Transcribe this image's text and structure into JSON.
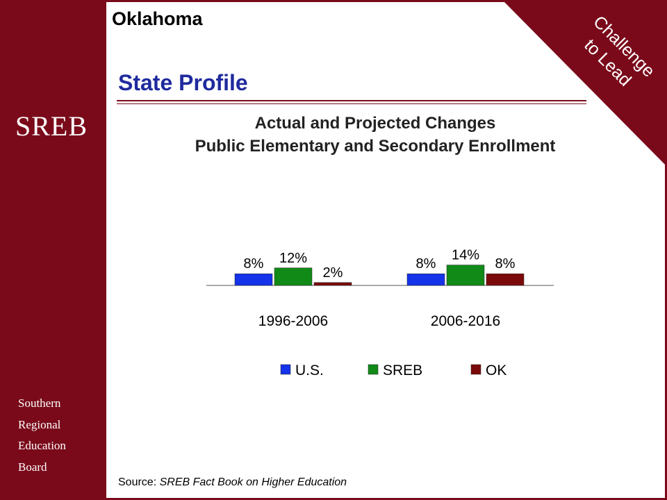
{
  "header": {
    "state": "Oklahoma",
    "page_title": "State Profile"
  },
  "corner": {
    "line1": "Challenge",
    "line2": "to Lead"
  },
  "sidebar": {
    "logo": "SREB",
    "words": [
      "Southern",
      "Regional",
      "Education",
      "Board"
    ]
  },
  "colors": {
    "brand": "#7a0a1a",
    "title_blue": "#1f2a9e",
    "us": "#1533e8",
    "sreb": "#118a18",
    "ok": "#7a0a0a"
  },
  "chart_data": {
    "type": "bar",
    "title": [
      "Actual and Projected Changes",
      "Public Elementary and Secondary Enrollment"
    ],
    "categories": [
      "1996-2006",
      "2006-2016"
    ],
    "series": [
      {
        "name": "U.S.",
        "values": [
          8,
          8
        ],
        "labels": [
          "8%",
          "8%"
        ],
        "color": "#1533e8"
      },
      {
        "name": "SREB",
        "values": [
          12,
          14
        ],
        "labels": [
          "12%",
          "14%"
        ],
        "color": "#118a18"
      },
      {
        "name": "OK",
        "values": [
          2,
          8
        ],
        "labels": [
          "2%",
          "8%"
        ],
        "color": "#7a0a0a"
      }
    ],
    "legend_position": "bottom",
    "grid": false,
    "xlabel": "",
    "ylabel": ""
  },
  "source": {
    "prefix": "Source: ",
    "text": "SREB Fact Book on Higher Education"
  }
}
